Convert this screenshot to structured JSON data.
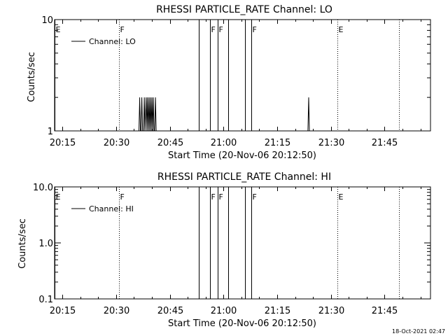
{
  "chart_data": [
    {
      "type": "line",
      "title": "RHESSI PARTICLE_RATE Channel: LO",
      "xlabel": "Start Time (20-Nov-06 20:12:50)",
      "ylabel": "Counts/sec",
      "scale": "log",
      "x_ticks": [
        "20:15",
        "20:30",
        "20:45",
        "21:00",
        "21:15",
        "21:30",
        "21:45"
      ],
      "y_ticks": [
        "1",
        "10"
      ],
      "x_tick_minutes": [
        15,
        30,
        45,
        60,
        75,
        90,
        105
      ],
      "xlim_minutes": [
        12.83,
        117.83
      ],
      "ylim": [
        1,
        10
      ],
      "legend": {
        "label": "Channel: LO",
        "position": "top-left"
      },
      "markers": [
        {
          "minute": 12.8,
          "label": "E",
          "style": "solid"
        },
        {
          "minute": 30.8,
          "label": "F",
          "style": "dotted"
        },
        {
          "minute": 53.1,
          "label": "",
          "style": "solid"
        },
        {
          "minute": 56.3,
          "label": "F",
          "style": "solid"
        },
        {
          "minute": 58.3,
          "label": "F",
          "style": "solid"
        },
        {
          "minute": 61.3,
          "label": "",
          "style": "solid"
        },
        {
          "minute": 66.0,
          "label": "",
          "style": "solid"
        },
        {
          "minute": 67.8,
          "label": "F",
          "style": "solid"
        },
        {
          "minute": 91.8,
          "label": "E",
          "style": "dotted"
        },
        {
          "minute": 109.0,
          "label": "",
          "style": "dotted"
        }
      ],
      "series": [
        {
          "name": "Channel: LO",
          "points": [
            [
              36.4,
              1
            ],
            [
              36.6,
              2
            ],
            [
              36.8,
              1
            ],
            [
              37.0,
              1
            ],
            [
              37.2,
              2
            ],
            [
              37.4,
              1
            ],
            [
              37.7,
              1
            ],
            [
              37.9,
              2
            ],
            [
              38.1,
              1
            ],
            [
              38.4,
              2
            ],
            [
              38.6,
              1
            ],
            [
              38.8,
              2
            ],
            [
              39.0,
              1
            ],
            [
              39.2,
              2
            ],
            [
              39.4,
              1
            ],
            [
              39.6,
              2
            ],
            [
              39.8,
              1
            ],
            [
              40.0,
              2
            ],
            [
              40.2,
              1
            ],
            [
              40.4,
              2
            ],
            [
              40.6,
              1
            ],
            [
              40.8,
              1
            ],
            [
              41.0,
              2
            ],
            [
              41.2,
              1
            ],
            [
              83.6,
              1
            ],
            [
              83.8,
              2
            ],
            [
              84.0,
              1
            ]
          ]
        }
      ]
    },
    {
      "type": "line",
      "title": "RHESSI PARTICLE_RATE Channel: HI",
      "xlabel": "Start Time (20-Nov-06 20:12:50)",
      "ylabel": "Counts/sec",
      "scale": "log",
      "x_ticks": [
        "20:15",
        "20:30",
        "20:45",
        "21:00",
        "21:15",
        "21:30",
        "21:45"
      ],
      "y_ticks": [
        "0.1",
        "1.0",
        "10.0"
      ],
      "x_tick_minutes": [
        15,
        30,
        45,
        60,
        75,
        90,
        105
      ],
      "xlim_minutes": [
        12.83,
        117.83
      ],
      "ylim": [
        0.1,
        10
      ],
      "legend": {
        "label": "Channel: HI",
        "position": "top-left"
      },
      "markers": [
        {
          "minute": 12.8,
          "label": "E",
          "style": "solid"
        },
        {
          "minute": 30.8,
          "label": "F",
          "style": "dotted"
        },
        {
          "minute": 53.1,
          "label": "",
          "style": "solid"
        },
        {
          "minute": 56.3,
          "label": "F",
          "style": "solid"
        },
        {
          "minute": 58.3,
          "label": "F",
          "style": "solid"
        },
        {
          "minute": 61.3,
          "label": "",
          "style": "solid"
        },
        {
          "minute": 66.0,
          "label": "",
          "style": "solid"
        },
        {
          "minute": 67.8,
          "label": "F",
          "style": "solid"
        },
        {
          "minute": 91.8,
          "label": "E",
          "style": "dotted"
        },
        {
          "minute": 109.0,
          "label": "",
          "style": "dotted"
        }
      ],
      "series": [
        {
          "name": "Channel: HI",
          "points": []
        }
      ]
    }
  ],
  "footer": {
    "timestamp": "18-Oct-2021 02:47"
  },
  "colors": {
    "foreground": "#000000",
    "background": "#ffffff"
  }
}
